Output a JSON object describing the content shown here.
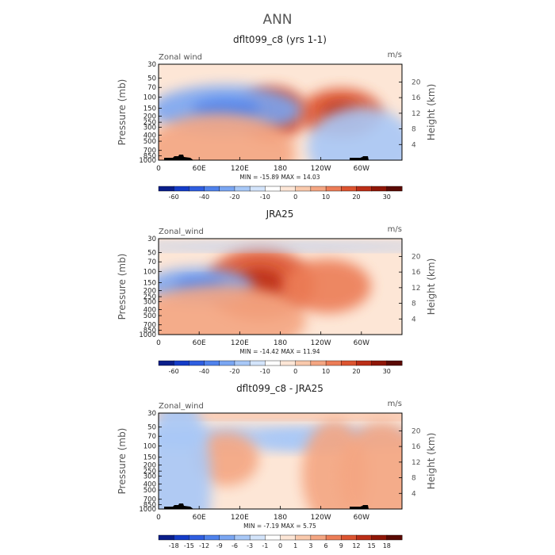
{
  "figure": {
    "title": "ANN",
    "colors": {
      "frame": "#000000",
      "land": "#000000",
      "text": "#222222"
    }
  },
  "chart_data": [
    {
      "type": "heatmap",
      "title": "dflt099_c8 (yrs 1-1)",
      "left_label": "Zonal wind",
      "right_label": "m/s",
      "xlabel": "",
      "ylabel": "Pressure (mb)",
      "ylabel_right": "Height (km)",
      "x_ticks": [
        "0",
        "60E",
        "120E",
        "180",
        "120W",
        "60W"
      ],
      "x_range": [
        0,
        360
      ],
      "y_ticks": [
        "30",
        "50",
        "70",
        "100",
        "150",
        "200",
        "250",
        "300",
        "400",
        "500",
        "700",
        "850",
        "1000"
      ],
      "y_range_mb": [
        1000,
        30
      ],
      "height_ticks": [
        "4",
        "8",
        "12",
        "16",
        "20"
      ],
      "stats": "MIN = -15.89   MAX = 14.03",
      "min": -15.89,
      "max": 14.03,
      "colorbar_labels": [
        "-60",
        "-40",
        "-20",
        "-10",
        "0",
        "10",
        "20",
        "30"
      ],
      "colorbar_colors": [
        "#0a1e8a",
        "#143cc8",
        "#2f5ee0",
        "#4f82ec",
        "#7aa6f2",
        "#a8c8f7",
        "#d3e4fb",
        "#ffffff",
        "#fde6d6",
        "#f9c9ac",
        "#f4a682",
        "#ec7d57",
        "#dc5430",
        "#bb2e17",
        "#8f1607",
        "#5a0a04"
      ],
      "anomaly_fields": [
        {
          "lon": 270,
          "p": 180,
          "amp": 14,
          "sx": 38,
          "sy": 55
        },
        {
          "lon": 170,
          "p": 180,
          "amp": 11,
          "sx": 32,
          "sy": 60
        },
        {
          "lon": 100,
          "p": 160,
          "amp": -10,
          "sx": 70,
          "sy": 55
        },
        {
          "lon": 90,
          "p": 780,
          "amp": 3,
          "sx": 70,
          "sy": 90
        },
        {
          "lon": 300,
          "p": 620,
          "amp": -3,
          "sx": 50,
          "sy": 90
        }
      ]
    },
    {
      "type": "heatmap",
      "title": "JRA25",
      "left_label": "Zonal_wind",
      "right_label": "m/s",
      "xlabel": "",
      "ylabel": "Pressure (mb)",
      "ylabel_right": "Height (km)",
      "x_ticks": [
        "0",
        "60E",
        "120E",
        "180",
        "120W",
        "60W"
      ],
      "x_range": [
        0,
        360
      ],
      "y_ticks": [
        "30",
        "50",
        "70",
        "100",
        "150",
        "200",
        "250",
        "300",
        "400",
        "500",
        "700",
        "850",
        "1000"
      ],
      "y_range_mb": [
        1000,
        30
      ],
      "height_ticks": [
        "4",
        "8",
        "12",
        "16",
        "20"
      ],
      "stats": "MIN = -14.42   MAX = 11.94",
      "min": -14.42,
      "max": 11.94,
      "colorbar_labels": [
        "-60",
        "-40",
        "-20",
        "-10",
        "0",
        "10",
        "20",
        "30"
      ],
      "colorbar_colors": [
        "#0a1e8a",
        "#143cc8",
        "#2f5ee0",
        "#4f82ec",
        "#7aa6f2",
        "#a8c8f7",
        "#d3e4fb",
        "#ffffff",
        "#fde6d6",
        "#f9c9ac",
        "#f4a682",
        "#ec7d57",
        "#dc5430",
        "#bb2e17",
        "#8f1607",
        "#5a0a04"
      ],
      "anomaly_fields": [
        {
          "lon": 150,
          "p": 160,
          "amp": 12,
          "sx": 50,
          "sy": 80
        },
        {
          "lon": 250,
          "p": 170,
          "amp": 8,
          "sx": 40,
          "sy": 60
        },
        {
          "lon": 60,
          "p": 170,
          "amp": -10,
          "sx": 50,
          "sy": 40
        },
        {
          "lon": 180,
          "p": 40,
          "amp": -4,
          "sx": 180,
          "sy": 8
        },
        {
          "lon": 90,
          "p": 600,
          "amp": 3,
          "sx": 80,
          "sy": 80
        }
      ]
    },
    {
      "type": "heatmap",
      "title": "dflt099_c8 - JRA25",
      "left_label": "Zonal_wind",
      "right_label": "m/s",
      "xlabel": "",
      "ylabel": "Pressure (mb)",
      "ylabel_right": "Height (km)",
      "x_ticks": [
        "0",
        "60E",
        "120E",
        "180",
        "120W",
        "60W"
      ],
      "x_range": [
        0,
        360
      ],
      "y_ticks": [
        "30",
        "50",
        "70",
        "100",
        "150",
        "200",
        "250",
        "300",
        "400",
        "500",
        "700",
        "850",
        "1000"
      ],
      "y_range_mb": [
        1000,
        30
      ],
      "height_ticks": [
        "4",
        "8",
        "12",
        "16",
        "20"
      ],
      "stats": "MIN = -7.19   MAX = 5.75",
      "min": -7.19,
      "max": 5.75,
      "colorbar_labels": [
        "-18",
        "-15",
        "-12",
        "-9",
        "-6",
        "-3",
        "-1",
        "0",
        "1",
        "3",
        "6",
        "9",
        "12",
        "15",
        "18"
      ],
      "colorbar_colors": [
        "#0a1e8a",
        "#143cc8",
        "#2f5ee0",
        "#4f82ec",
        "#7aa6f2",
        "#a8c8f7",
        "#d3e4fb",
        "#ffffff",
        "#fde6d6",
        "#f9c9ac",
        "#f4a682",
        "#ec7d57",
        "#dc5430",
        "#bb2e17",
        "#8f1607",
        "#5a0a04"
      ],
      "anomaly_fields": [
        {
          "lon": 180,
          "p": 33,
          "amp": 3,
          "sx": 400,
          "sy": 4
        },
        {
          "lon": 170,
          "p": 75,
          "amp": -4,
          "sx": 150,
          "sy": 25
        },
        {
          "lon": 230,
          "p": 80,
          "amp": -3,
          "sx": 50,
          "sy": 20
        },
        {
          "lon": 260,
          "p": 280,
          "amp": 3,
          "sx": 30,
          "sy": 120
        },
        {
          "lon": 330,
          "p": 300,
          "amp": 3,
          "sx": 40,
          "sy": 120
        },
        {
          "lon": 100,
          "p": 160,
          "amp": 3,
          "sx": 30,
          "sy": 60
        },
        {
          "lon": 30,
          "p": 400,
          "amp": -3,
          "sx": 30,
          "sy": 200
        }
      ]
    }
  ]
}
